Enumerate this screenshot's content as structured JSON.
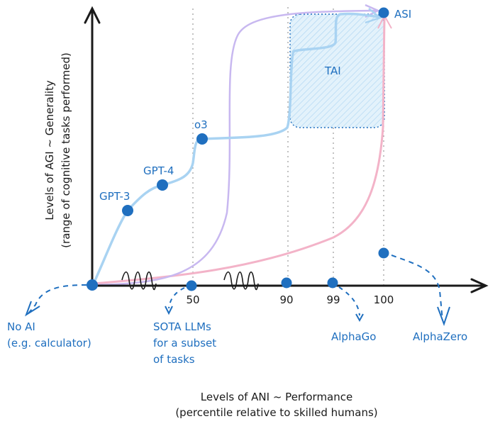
{
  "axes": {
    "x_title": "Levels of ANI ~ Performance",
    "x_subtitle": "(percentile relative to skilled humans)",
    "y_title": "Levels of AGI ~ Generality",
    "y_subtitle": "(range of cognitive tasks performed)",
    "x_ticks": [
      "50",
      "90",
      "99",
      "100"
    ]
  },
  "models": [
    {
      "label": "GPT-3"
    },
    {
      "label": "GPT-4"
    },
    {
      "label": "o3"
    }
  ],
  "regions": {
    "tai_label": "TAI",
    "asi_label": "ASI"
  },
  "annotations": {
    "no_ai_line1": "No AI",
    "no_ai_line2": "(e.g. calculator)",
    "sota_line1": "SOTA LLMs",
    "sota_line2": "for a subset",
    "sota_line3": "of tasks",
    "alphago": "AlphaGo",
    "alphazero": "AlphaZero"
  },
  "colors": {
    "point": "#1f6fbf",
    "llm_path": "#a9d3f2",
    "purple_path": "#c8b8f0",
    "pink_path": "#f3b3c8",
    "axis": "#1a1a1a",
    "tai_fill": "#d6ecf9"
  }
}
